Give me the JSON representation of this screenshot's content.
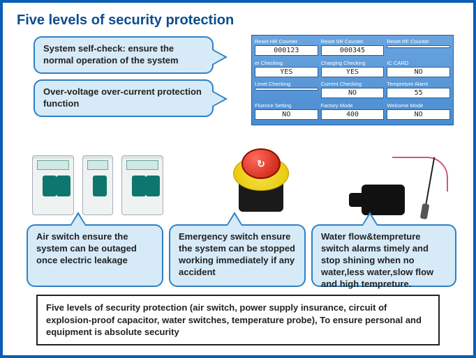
{
  "colors": {
    "frame_border": "#0b5fb5",
    "title": "#0b4d8c",
    "callout_bg": "#d6eaf8",
    "callout_border": "#2d81c5",
    "panel_bg_top": "#6aa5e0",
    "panel_bg_bottom": "#4b8cd1",
    "panel_cell_bg": "#ffffff",
    "estop_red": "#c21807",
    "estop_yellow": "#e8c500",
    "breaker_teal": "#0f766e",
    "summary_border": "#222222"
  },
  "title": "Five levels of security protection",
  "callouts": {
    "self_check": "System self-check: ensure the normal operation of the system",
    "overcurrent": "Over-voltage over-current protection function",
    "air_switch": "Air switch ensure the system can be outaged once electric leakage",
    "emergency": "Emergency switch ensure the system can be stopped working immediately if any accident",
    "water_temp": "Water flow&tempreture switch alarms timely and stop shining when no water,less water,slow flow and high tempreture."
  },
  "panel": {
    "rows": [
      [
        {
          "label": "Reset HR Counter",
          "value": "000123"
        },
        {
          "label": "Reset SR Counter",
          "value": "000345"
        },
        {
          "label": "Reset RF Counter",
          "value": ""
        }
      ],
      [
        {
          "label": "er Checking",
          "value": "YES"
        },
        {
          "label": "Charging Checking",
          "value": "YES"
        },
        {
          "label": "IC CARD",
          "value": "NO"
        }
      ],
      [
        {
          "label": "Level Checking",
          "value": ""
        },
        {
          "label": "Current Checking",
          "value": "NO"
        },
        {
          "label": "Tempreture Alarm",
          "value": "55"
        }
      ],
      [
        {
          "label": "Fluence Setting",
          "value": "NO"
        },
        {
          "label": "Factory Mode",
          "value": "400"
        },
        {
          "label": "Welcome Mode",
          "value": "NO"
        }
      ]
    ]
  },
  "icons": {
    "breaker": "circuit-breaker-icon",
    "estop": "emergency-stop-icon",
    "flow_sensor": "flow-sensor-icon",
    "temp_probe": "temperature-probe-icon"
  },
  "summary": "Five levels of security protection (air switch, power supply insurance, circuit of explosion-proof capacitor, water switches, temperature probe), To ensure personal and equipment is absolute security"
}
